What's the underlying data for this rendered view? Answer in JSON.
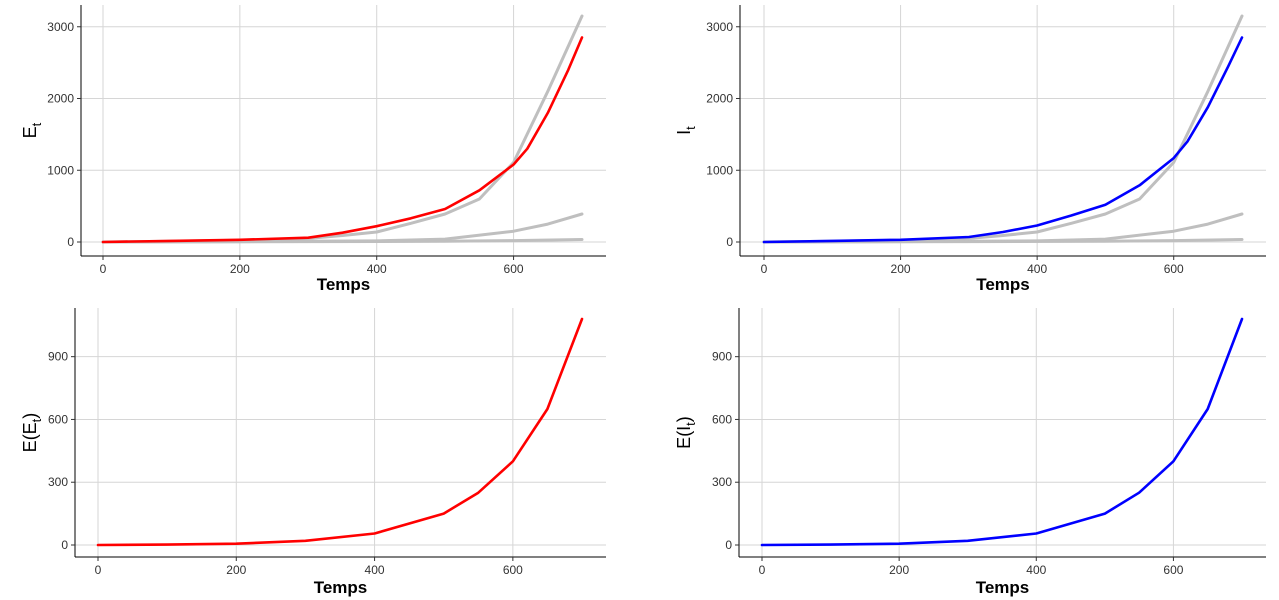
{
  "chart_data": [
    {
      "type": "line",
      "title": "",
      "xlabel": "Temps",
      "ylabel": {
        "main": "E",
        "sub": "t",
        "wrap": false
      },
      "xlim": [
        0,
        700
      ],
      "ylim": [
        0,
        3150
      ],
      "xticks": [
        0,
        200,
        400,
        600
      ],
      "yticks": [
        0,
        1000,
        2000,
        3000
      ],
      "grid": true,
      "legend": "none",
      "series": [
        {
          "color": "#bfbfbf",
          "x": [
            0,
            100,
            200,
            300,
            350,
            400,
            450,
            500,
            550,
            600,
            650,
            700
          ],
          "y": [
            0,
            10,
            25,
            50,
            90,
            140,
            260,
            390,
            600,
            1110,
            2100,
            3150
          ]
        },
        {
          "color": "#bfbfbf",
          "x": [
            0,
            200,
            400,
            500,
            600,
            650,
            700
          ],
          "y": [
            0,
            5,
            15,
            40,
            150,
            250,
            390
          ]
        },
        {
          "color": "#bfbfbf",
          "x": [
            0,
            300,
            500,
            600,
            700
          ],
          "y": [
            0,
            5,
            10,
            20,
            35
          ]
        },
        {
          "color": "#ff0000",
          "x": [
            0,
            100,
            200,
            300,
            350,
            400,
            450,
            500,
            550,
            600,
            620,
            650,
            680,
            700
          ],
          "y": [
            0,
            15,
            30,
            60,
            130,
            220,
            330,
            460,
            720,
            1080,
            1300,
            1800,
            2400,
            2850
          ]
        }
      ]
    },
    {
      "type": "line",
      "title": "",
      "xlabel": "Temps",
      "ylabel": {
        "main": "I",
        "sub": "t",
        "wrap": false
      },
      "xlim": [
        0,
        700
      ],
      "ylim": [
        0,
        3150
      ],
      "xticks": [
        0,
        200,
        400,
        600
      ],
      "yticks": [
        0,
        1000,
        2000,
        3000
      ],
      "grid": true,
      "legend": "none",
      "series": [
        {
          "color": "#bfbfbf",
          "x": [
            0,
            100,
            200,
            300,
            350,
            400,
            450,
            500,
            550,
            600,
            650,
            700
          ],
          "y": [
            0,
            10,
            25,
            50,
            90,
            140,
            260,
            390,
            600,
            1110,
            2100,
            3150
          ]
        },
        {
          "color": "#bfbfbf",
          "x": [
            0,
            200,
            400,
            500,
            600,
            650,
            700
          ],
          "y": [
            0,
            5,
            15,
            40,
            150,
            250,
            390
          ]
        },
        {
          "color": "#bfbfbf",
          "x": [
            0,
            300,
            500,
            600,
            700
          ],
          "y": [
            0,
            5,
            10,
            20,
            35
          ]
        },
        {
          "color": "#0000ff",
          "x": [
            0,
            100,
            200,
            300,
            350,
            400,
            450,
            500,
            550,
            600,
            620,
            650,
            680,
            700
          ],
          "y": [
            0,
            15,
            30,
            70,
            140,
            230,
            370,
            520,
            790,
            1170,
            1400,
            1880,
            2450,
            2850
          ]
        }
      ]
    },
    {
      "type": "line",
      "title": "",
      "xlabel": "Temps",
      "ylabel": {
        "main": "E",
        "sub": "t",
        "wrap": true
      },
      "xlim": [
        0,
        700
      ],
      "ylim": [
        0,
        1080
      ],
      "xticks": [
        0,
        200,
        400,
        600
      ],
      "yticks": [
        0,
        300,
        600,
        900
      ],
      "grid": true,
      "legend": "none",
      "series": [
        {
          "color": "#ff0000",
          "x": [
            0,
            100,
            200,
            300,
            400,
            500,
            550,
            600,
            650,
            700
          ],
          "y": [
            0,
            2,
            6,
            20,
            55,
            150,
            250,
            400,
            650,
            1080
          ]
        }
      ]
    },
    {
      "type": "line",
      "title": "",
      "xlabel": "Temps",
      "ylabel": {
        "main": "I",
        "sub": "t",
        "wrap": true
      },
      "xlim": [
        0,
        700
      ],
      "ylim": [
        0,
        1080
      ],
      "xticks": [
        0,
        200,
        400,
        600
      ],
      "yticks": [
        0,
        300,
        600,
        900
      ],
      "grid": true,
      "legend": "none",
      "series": [
        {
          "color": "#0000ff",
          "x": [
            0,
            100,
            200,
            300,
            400,
            500,
            550,
            600,
            650,
            700
          ],
          "y": [
            0,
            2,
            6,
            20,
            55,
            150,
            250,
            400,
            650,
            1080
          ]
        }
      ]
    }
  ]
}
